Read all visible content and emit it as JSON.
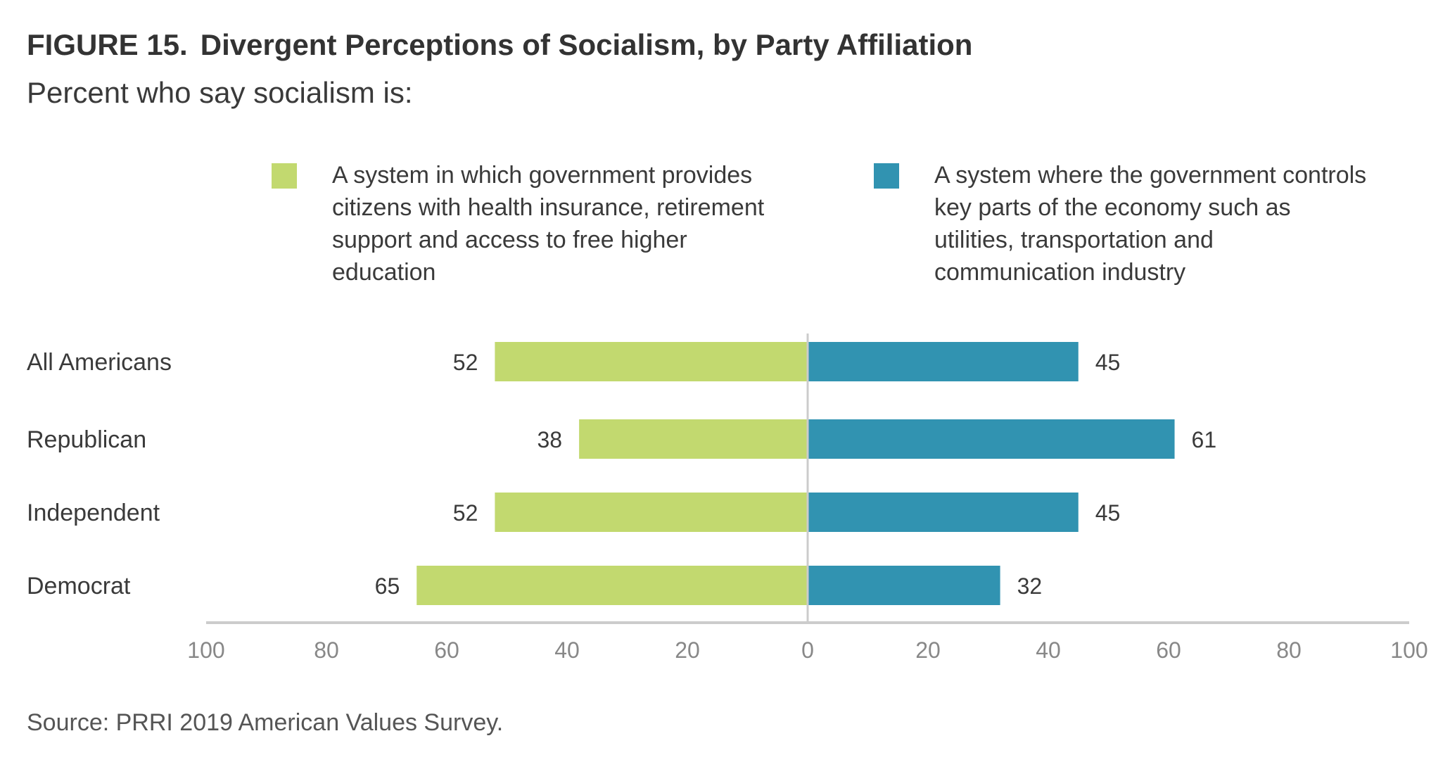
{
  "figure_label": "FIGURE 15.",
  "title": "Divergent Perceptions of Socialism, by Party Affiliation",
  "subtitle": "Percent who say socialism is:",
  "source": "Source: PRRI 2019 American Values Survey.",
  "colors": {
    "left": "#c2d96f",
    "right": "#3193b1",
    "axis": "#cccccc",
    "tick_text": "#888888"
  },
  "chart_data": {
    "type": "bar",
    "orientation": "horizontal-diverging",
    "title": "Divergent Perceptions of Socialism, by Party Affiliation",
    "subtitle": "Percent who say socialism is:",
    "categories": [
      "All Americans",
      "Republican",
      "Independent",
      "Democrat"
    ],
    "series": [
      {
        "name": "A system in which government provides citizens with health insurance, retirement support and access to free higher education",
        "direction": "left",
        "values": [
          52,
          38,
          52,
          65
        ]
      },
      {
        "name": "A system where the government controls key parts of the economy such as utilities, transportation and communication industry",
        "direction": "right",
        "values": [
          45,
          61,
          45,
          32
        ]
      }
    ],
    "ticks": [
      "100",
      "80",
      "60",
      "40",
      "20",
      "0",
      "20",
      "40",
      "60",
      "80",
      "100"
    ],
    "xlim": [
      -100,
      100
    ],
    "grid": false,
    "legend_position": "top"
  }
}
